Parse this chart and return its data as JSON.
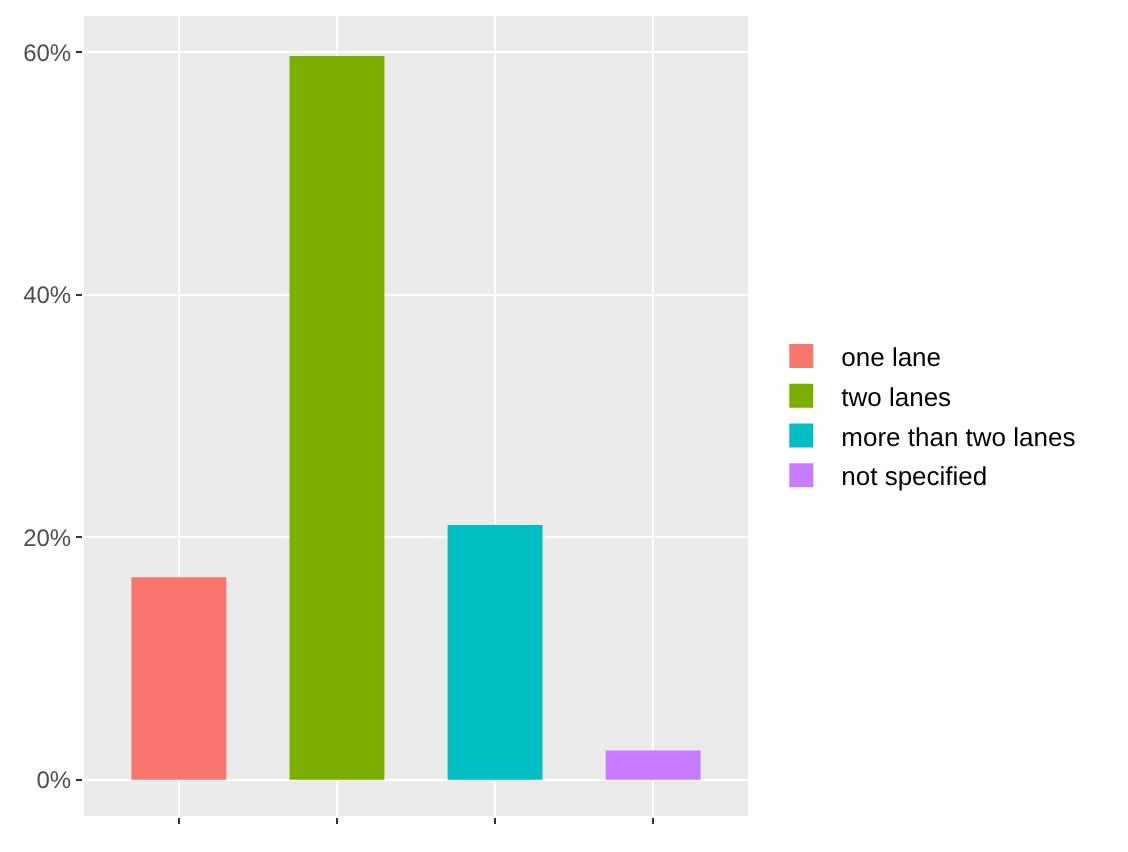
{
  "chart_data": {
    "type": "bar",
    "categories": [
      null,
      null,
      null,
      null
    ],
    "series": [
      {
        "name": "one lane",
        "color": "#f8766d",
        "values": [
          16.7,
          null,
          null,
          null
        ]
      },
      {
        "name": "two lanes",
        "color": "#7cae00",
        "values": [
          null,
          59.7,
          null,
          null
        ]
      },
      {
        "name": "more than two lanes",
        "color": "#00bfc4",
        "values": [
          null,
          null,
          21.0,
          null
        ]
      },
      {
        "name": "not specified",
        "color": "#c77cff",
        "values": [
          null,
          null,
          null,
          2.4
        ]
      }
    ],
    "ylim": [
      -3,
      63
    ],
    "yticks": [
      {
        "value": 0,
        "label": "0%"
      },
      {
        "value": 20,
        "label": "20%"
      },
      {
        "value": 40,
        "label": "40%"
      },
      {
        "value": 60,
        "label": "60%"
      }
    ],
    "grid": true,
    "legend": "right"
  }
}
